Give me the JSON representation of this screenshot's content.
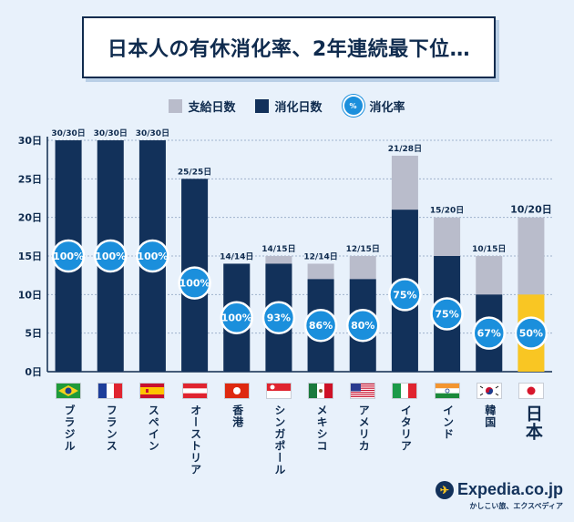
{
  "title": "日本人の有休消化率、2年連続最下位…",
  "legend": {
    "granted": "支給日数",
    "used": "消化日数",
    "rate": "消化率",
    "rate_icon_text": "%"
  },
  "brand": {
    "name": "Expedia.co.jp",
    "tagline": "かしこい旅、エクスペディア"
  },
  "colors": {
    "granted": "#b9bccb",
    "used": "#12315a",
    "highlight": "#f9c623",
    "rate_circle": "#1b8fdc",
    "background": "#e8f1fb"
  },
  "chart_data": {
    "type": "bar",
    "ylim": [
      0,
      30
    ],
    "yticks": [
      "0日",
      "5日",
      "10日",
      "15日",
      "20日",
      "25日",
      "30日"
    ],
    "categories": [
      "ブラジル",
      "フランス",
      "スペイン",
      "オーストリア",
      "香港",
      "シンガポール",
      "メキシコ",
      "アメリカ",
      "イタリア",
      "インド",
      "韓国",
      "日本"
    ],
    "flags": [
      "brazil-flag-icon",
      "france-flag-icon",
      "spain-flag-icon",
      "austria-flag-icon",
      "hong-kong-flag-icon",
      "singapore-flag-icon",
      "mexico-flag-icon",
      "usa-flag-icon",
      "italy-flag-icon",
      "india-flag-icon",
      "korea-flag-icon",
      "japan-flag-icon"
    ],
    "series": [
      {
        "name": "支給日数",
        "values": [
          30,
          30,
          30,
          25,
          14,
          15,
          14,
          15,
          28,
          20,
          15,
          20
        ]
      },
      {
        "name": "消化日数",
        "values": [
          30,
          30,
          30,
          25,
          14,
          14,
          12,
          12,
          21,
          15,
          10,
          10
        ]
      }
    ],
    "bar_labels": [
      "30/30日",
      "30/30日",
      "30/30日",
      "25/25日",
      "14/14日",
      "14/15日",
      "12/14日",
      "12/15日",
      "21/28日",
      "15/20日",
      "10/15日",
      "10/20日"
    ],
    "rates": [
      "100%",
      "100%",
      "100%",
      "100%",
      "100%",
      "93%",
      "86%",
      "80%",
      "75%",
      "75%",
      "67%",
      "50%"
    ],
    "highlight_category": "日本"
  }
}
